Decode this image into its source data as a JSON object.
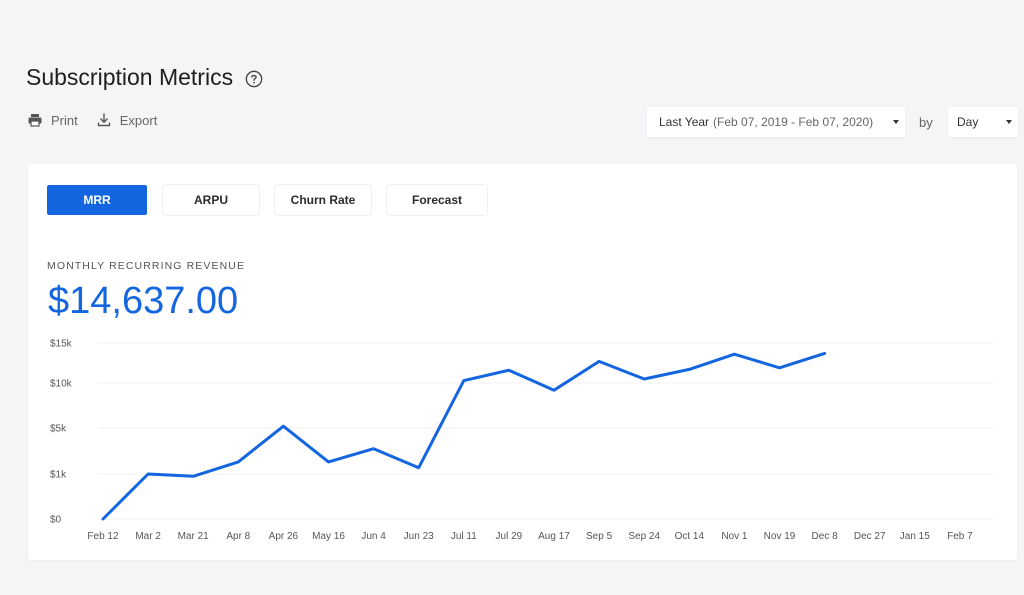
{
  "header": {
    "title": "Subscription Metrics",
    "print_label": "Print",
    "export_label": "Export"
  },
  "filters": {
    "range_label": "Last Year",
    "range_dates": "(Feb 07, 2019 - Feb 07, 2020)",
    "by_label": "by",
    "granularity": "Day"
  },
  "tabs": [
    {
      "label": "MRR",
      "active": true
    },
    {
      "label": "ARPU",
      "active": false
    },
    {
      "label": "Churn Rate",
      "active": false
    },
    {
      "label": "Forecast",
      "active": false
    }
  ],
  "metric": {
    "label": "MONTHLY RECURRING REVENUE",
    "value": "$14,637.00"
  },
  "colors": {
    "accent": "#1366e0",
    "background": "#f5f5f7"
  },
  "chart_data": {
    "type": "line",
    "y_tick_labels": [
      "$0",
      "$1k",
      "$5k",
      "$10k",
      "$15k"
    ],
    "x_tick_labels": [
      "Feb 12",
      "Mar 2",
      "Mar 21",
      "Apr 8",
      "Apr 26",
      "May 16",
      "Jun 4",
      "Jun 23",
      "Jul 11",
      "Jul 29",
      "Aug 17",
      "Sep 5",
      "Sep 24",
      "Oct 14",
      "Nov 1",
      "Nov 19",
      "Dec 8",
      "Dec 27",
      "Jan 15",
      "Feb 7"
    ],
    "x": [
      "Feb 12",
      "Mar 2",
      "Mar 21",
      "Apr 8",
      "Apr 26",
      "May 16",
      "Jun 4",
      "Jun 23",
      "Jul 11",
      "Jul 29",
      "Aug 17",
      "Sep 5",
      "Sep 24",
      "Oct 14",
      "Nov 1",
      "Nov 19",
      "Dec 8"
    ],
    "series": [
      {
        "values": [
          0,
          1000,
          950,
          2050,
          5200,
          2050,
          3200,
          1550,
          10300,
          11600,
          9200,
          12700,
          10500,
          11700,
          13600,
          11900,
          13700
        ]
      }
    ],
    "grid": true,
    "color": "#1366e0"
  }
}
